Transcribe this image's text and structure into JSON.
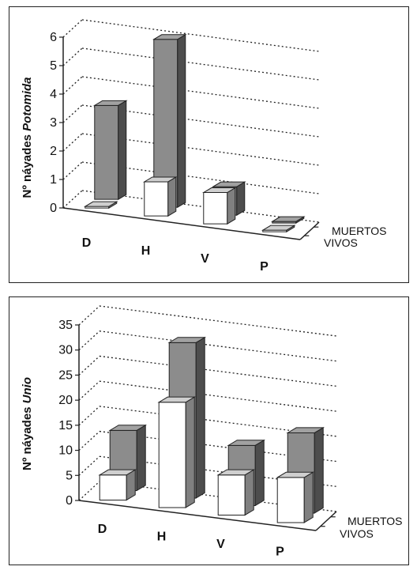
{
  "chart_data": [
    {
      "type": "bar",
      "categories": [
        "D",
        "H",
        "V",
        "P"
      ],
      "series": [
        {
          "name": "MUERTOS",
          "values": [
            3.3,
            5.9,
            1.0,
            0
          ],
          "color": "#8c8c8c"
        },
        {
          "name": "VIVOS",
          "values": [
            0,
            1.2,
            1.1,
            0
          ],
          "color": "#ffffff"
        }
      ],
      "ylabel_prefix": "Nº náyades ",
      "ylabel_taxon": "Potomida",
      "yticks": [
        "0",
        "1",
        "2",
        "3",
        "4",
        "5",
        "6"
      ],
      "ylim": [
        0,
        6
      ],
      "grid": true,
      "legend": "right"
    },
    {
      "type": "bar",
      "categories": [
        "D",
        "H",
        "V",
        "P"
      ],
      "series": [
        {
          "name": "MUERTOS",
          "values": [
            12,
            31,
            12,
            16
          ],
          "color": "#8c8c8c"
        },
        {
          "name": "VIVOS",
          "values": [
            5,
            21,
            8,
            9
          ],
          "color": "#ffffff"
        }
      ],
      "ylabel_prefix": "Nº náyades ",
      "ylabel_taxon": "Unio",
      "yticks": [
        "0",
        "5",
        "10",
        "15",
        "20",
        "25",
        "30",
        "35"
      ],
      "ylim": [
        0,
        35
      ],
      "grid": true,
      "legend": "right"
    }
  ]
}
